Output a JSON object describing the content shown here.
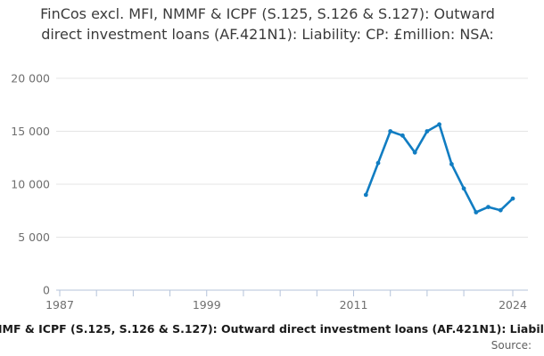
{
  "title": "FinCos excl. MFI, NMMF & ICPF (S.125, S.126 & S.127): Outward direct investment loans (AF.421N1): Liability: CP: £million: NSA:",
  "footer": {
    "series_label": "MMF & ICPF (S.125, S.126 & S.127): Outward direct investment loans (AF.421N1): Liabil",
    "source_label": "Source:"
  },
  "colors": {
    "line": "#117dc2",
    "grid": "#e4e4e4",
    "axis": "#b4c3da",
    "tick_text": "#6f6f6f",
    "title_text": "#3b3b3b",
    "footer_text": "#1a1a1a",
    "source_text": "#5f5f5f"
  },
  "chart_data": {
    "type": "line",
    "title": "FinCos excl. MFI, NMMF & ICPF (S.125, S.126 & S.127): Outward direct investment loans (AF.421N1): Liability: CP: £million: NSA:",
    "xlabel": "",
    "ylabel": "",
    "x": [
      2012,
      2013,
      2014,
      2015,
      2016,
      2017,
      2018,
      2019,
      2020,
      2021,
      2022,
      2023,
      2024
    ],
    "values": [
      9000,
      12000,
      15000,
      14600,
      13000,
      15000,
      15650,
      11900,
      9600,
      7350,
      7850,
      7550,
      8650
    ],
    "ylim": [
      0,
      20000
    ],
    "xlim": [
      1986.7,
      2025.2
    ],
    "y_ticks": [
      0,
      5000,
      10000,
      15000,
      20000
    ],
    "y_tick_labels": [
      "0",
      "5 000",
      "10 000",
      "15 000",
      "20 000"
    ],
    "x_ticks": [
      1987,
      1990,
      1993,
      1996,
      1999,
      2002,
      2005,
      2008,
      2011,
      2014,
      2017,
      2020,
      2024
    ],
    "x_tick_labels": [
      "1987",
      "",
      "",
      "",
      "1999",
      "",
      "",
      "",
      "2011",
      "",
      "",
      "",
      "2024"
    ],
    "grid": "horizontal",
    "legend": "none",
    "markers": true,
    "line_color": "#117dc2"
  }
}
